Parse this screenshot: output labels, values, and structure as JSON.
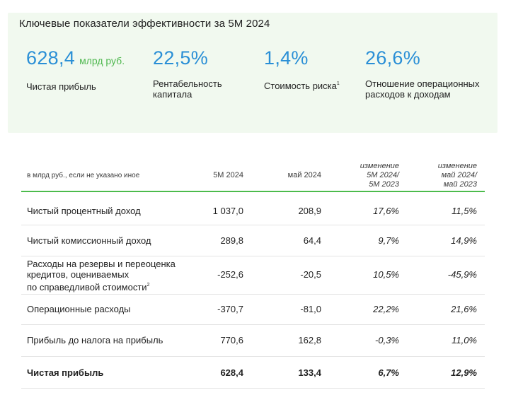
{
  "kpi": {
    "title": "Ключевые показатели эффективности за 5М 2024",
    "items": [
      {
        "value": "628,4",
        "unit": "млрд руб.",
        "label_lines": [
          "Чистая прибыль"
        ],
        "footnote": ""
      },
      {
        "value": "22,5%",
        "unit": "",
        "label_lines": [
          "Рентабельность",
          "капитала"
        ],
        "footnote": ""
      },
      {
        "value": "1,4%",
        "unit": "",
        "label_lines": [
          "Стоимость риска"
        ],
        "footnote": "1"
      },
      {
        "value": "26,6%",
        "unit": "",
        "label_lines": [
          "Отношение операционных",
          "расходов к доходам"
        ],
        "footnote": ""
      }
    ],
    "colors": {
      "value": "#2a8fd6",
      "unit": "#4fb84f",
      "panel": "#f1f9ef"
    }
  },
  "table": {
    "header": {
      "note": "в млрд руб., если не указано иное",
      "col1": "5М 2024",
      "col2": "май 2024",
      "col3_lines": [
        "изменение",
        "5М 2024/",
        "5М 2023"
      ],
      "col4_lines": [
        "изменение",
        "май 2024/",
        "май 2023"
      ]
    },
    "rows": [
      {
        "label_lines": [
          "Чистый процентный доход"
        ],
        "footnote": "",
        "v1": "1 037,0",
        "v2": "208,9",
        "v3": "17,6%",
        "v4": "11,5%"
      },
      {
        "label_lines": [
          "Чистый комиссионный доход"
        ],
        "footnote": "",
        "v1": "289,8",
        "v2": "64,4",
        "v3": "9,7%",
        "v4": "14,9%"
      },
      {
        "label_lines": [
          "Расходы на резервы и переоценка",
          "кредитов, оцениваемых",
          "по справедливой стоимости"
        ],
        "footnote": "2",
        "v1": "-252,6",
        "v2": "-20,5",
        "v3": "10,5%",
        "v4": "-45,9%"
      },
      {
        "label_lines": [
          "Операционные расходы"
        ],
        "footnote": "",
        "v1": "-370,7",
        "v2": "-81,0",
        "v3": "22,2%",
        "v4": "21,6%"
      },
      {
        "label_lines": [
          "Прибыль до налога на прибыль"
        ],
        "footnote": "",
        "v1": "770,6",
        "v2": "162,8",
        "v3": "-0,3%",
        "v4": "11,0%"
      }
    ],
    "total": {
      "label": "Чистая прибыль",
      "v1": "628,4",
      "v2": "133,4",
      "v3": "6,7%",
      "v4": "12,9%"
    },
    "colors": {
      "header_rule": "#4cbb4c"
    }
  }
}
